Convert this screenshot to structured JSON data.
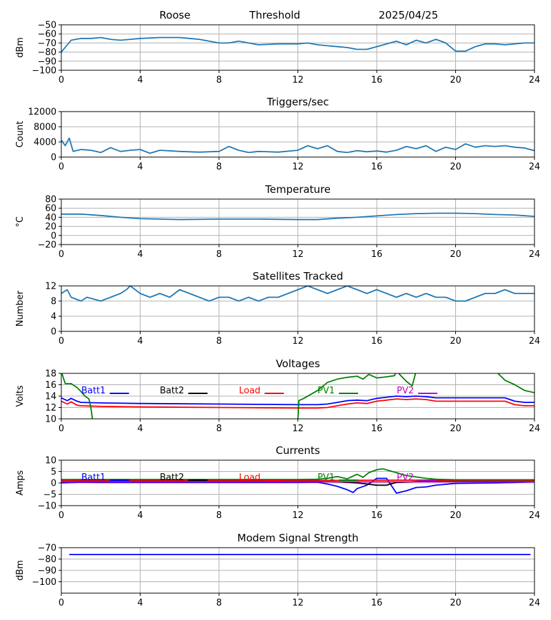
{
  "header": {
    "site": "Roose",
    "mode": "Threshold",
    "date": "2025/04/25"
  },
  "x_axis": {
    "ticks": [
      "0",
      "4",
      "8",
      "12",
      "16",
      "20",
      "24"
    ],
    "range": [
      0,
      24
    ]
  },
  "chart_data": [
    {
      "type": "line",
      "title": "",
      "ylabel": "dBm",
      "ylim": [
        -100,
        -50
      ],
      "yticks": [
        -100,
        -90,
        -80,
        -70,
        -60,
        -50
      ],
      "grid": true,
      "series": [
        {
          "color": "#1f77b4",
          "x": [
            0,
            0.5,
            1,
            1.5,
            2,
            2.5,
            3,
            3.5,
            4,
            5,
            6,
            6.5,
            7,
            7.5,
            8,
            8.5,
            9,
            10,
            11,
            12,
            12.5,
            13,
            13.5,
            14,
            14.5,
            15,
            15.5,
            16,
            16.5,
            17,
            17.5,
            18,
            18.5,
            19,
            19.5,
            20,
            20.5,
            21,
            21.5,
            22,
            22.5,
            23,
            23.5,
            24
          ],
          "y": [
            -80,
            -67,
            -65,
            -65,
            -64,
            -66,
            -67,
            -66,
            -65,
            -64,
            -64,
            -65,
            -66,
            -68,
            -70,
            -70,
            -68,
            -72,
            -71,
            -71,
            -70,
            -72,
            -73,
            -74,
            -75,
            -77,
            -77,
            -74,
            -71,
            -68,
            -72,
            -67,
            -70,
            -66,
            -70,
            -79,
            -79,
            -74,
            -71,
            -71,
            -72,
            -71,
            -70,
            -70
          ]
        }
      ]
    },
    {
      "type": "line",
      "title": "Triggers/sec",
      "ylabel": "Count",
      "ylim": [
        0,
        12000
      ],
      "yticks": [
        0,
        4000,
        8000,
        12000
      ],
      "grid": true,
      "series": [
        {
          "color": "#1f77b4",
          "x": [
            0,
            0.2,
            0.4,
            0.6,
            1,
            1.5,
            2,
            2.5,
            3,
            3.5,
            4,
            4.5,
            5,
            6,
            7,
            8,
            8.5,
            9,
            9.5,
            10,
            11,
            12,
            12.5,
            13,
            13.5,
            14,
            14.5,
            15,
            15.5,
            16,
            16.5,
            17,
            17.5,
            18,
            18.5,
            19,
            19.5,
            20,
            20.5,
            21,
            21.5,
            22,
            22.5,
            23,
            23.5,
            24
          ],
          "y": [
            4500,
            3000,
            5000,
            1500,
            2000,
            1800,
            1200,
            2500,
            1500,
            1800,
            2000,
            1000,
            1800,
            1500,
            1300,
            1500,
            2800,
            1800,
            1200,
            1500,
            1300,
            1800,
            3000,
            2200,
            3000,
            1500,
            1200,
            1700,
            1400,
            1600,
            1300,
            1800,
            2800,
            2200,
            3000,
            1500,
            2600,
            2000,
            3500,
            2600,
            3000,
            2800,
            3000,
            2600,
            2400,
            1700
          ]
        }
      ]
    },
    {
      "type": "line",
      "title": "Temperature",
      "ylabel": "°C",
      "ylim": [
        -20,
        80
      ],
      "yticks": [
        -20,
        0,
        20,
        40,
        60,
        80
      ],
      "grid": true,
      "series": [
        {
          "color": "#1f77b4",
          "x": [
            0,
            1,
            2,
            3,
            4,
            5,
            6,
            8,
            10,
            12,
            13,
            14,
            15,
            16,
            17,
            18,
            19,
            20,
            21,
            22,
            23,
            24
          ],
          "y": [
            47,
            47,
            44,
            40,
            37,
            36,
            35,
            36,
            36,
            35,
            35,
            38,
            40,
            43,
            46,
            48,
            49,
            49,
            48,
            46,
            45,
            42
          ]
        }
      ]
    },
    {
      "type": "line",
      "title": "Satellites Tracked",
      "ylabel": "Number",
      "ylim": [
        0,
        12
      ],
      "yticks": [
        0,
        4,
        8,
        12
      ],
      "grid": true,
      "series": [
        {
          "color": "#1f77b4",
          "x": [
            0,
            0.3,
            0.5,
            1,
            1.3,
            2,
            2.5,
            3,
            3.3,
            3.5,
            4,
            4.5,
            5,
            5.5,
            6,
            6.5,
            7,
            7.5,
            8,
            8.5,
            9,
            9.5,
            10,
            10.5,
            11,
            11.5,
            12,
            12.5,
            13,
            13.5,
            14,
            14.5,
            15,
            15.5,
            16,
            16.5,
            17,
            17.5,
            18,
            18.5,
            19,
            19.5,
            20,
            20.5,
            21,
            21.5,
            22,
            22.5,
            23,
            23.5,
            24
          ],
          "y": [
            10,
            11,
            9,
            8,
            9,
            8,
            9,
            10,
            11,
            12,
            10,
            9,
            10,
            9,
            11,
            10,
            9,
            8,
            9,
            9,
            8,
            9,
            8,
            9,
            9,
            10,
            11,
            12,
            11,
            10,
            11,
            12,
            11,
            10,
            11,
            10,
            9,
            10,
            9,
            10,
            9,
            9,
            8,
            8,
            9,
            10,
            10,
            11,
            10,
            10,
            10
          ]
        }
      ]
    },
    {
      "type": "line",
      "title": "Voltages",
      "ylabel": "Volts",
      "ylim": [
        10,
        18
      ],
      "yticks": [
        10,
        12,
        14,
        16,
        18
      ],
      "grid": true,
      "series": [
        {
          "name": "Batt1",
          "color": "#0000ff",
          "x": [
            0,
            0.3,
            0.5,
            0.8,
            1,
            2,
            4,
            8,
            12,
            13,
            13.5,
            14,
            14.5,
            15,
            15.5,
            16,
            16.5,
            17,
            17.5,
            18,
            18.5,
            19,
            20,
            22.5,
            23,
            23.5,
            24
          ],
          "y": [
            13.7,
            13.2,
            13.6,
            13.1,
            12.9,
            12.8,
            12.7,
            12.6,
            12.5,
            12.5,
            12.6,
            12.9,
            13.2,
            13.3,
            13.2,
            13.6,
            13.8,
            14.0,
            13.9,
            14.0,
            13.9,
            13.7,
            13.7,
            13.7,
            13.1,
            12.9,
            12.9
          ]
        },
        {
          "name": "Batt2",
          "color": "#000000",
          "x": [],
          "y": []
        },
        {
          "name": "Load",
          "color": "#ff0000",
          "x": [
            0,
            0.3,
            0.5,
            0.8,
            1,
            2,
            4,
            8,
            12,
            13,
            13.5,
            14,
            14.5,
            15,
            15.5,
            16,
            16.5,
            17,
            17.5,
            18,
            18.5,
            19,
            20,
            22.5,
            23,
            23.5,
            24
          ],
          "y": [
            13.1,
            12.6,
            13.0,
            12.4,
            12.3,
            12.2,
            12.1,
            12.0,
            11.9,
            11.9,
            12.0,
            12.3,
            12.6,
            12.8,
            12.7,
            13.1,
            13.3,
            13.5,
            13.4,
            13.5,
            13.4,
            13.1,
            13.1,
            13.1,
            12.5,
            12.3,
            12.3
          ]
        },
        {
          "name": "PV1",
          "color": "#008000",
          "x": [
            0,
            0.2,
            0.5,
            0.8,
            1,
            1.2,
            1.4,
            1.5,
            1.6,
            12.0,
            12.05,
            12.3,
            13,
            13.5,
            14,
            14.5,
            15,
            15.3,
            15.6,
            16,
            16.5,
            16.9,
            17,
            17.5,
            17.8,
            18.0,
            22.0,
            22.5,
            23,
            23.5,
            24
          ],
          "y": [
            18.3,
            16.2,
            16.2,
            15.5,
            14.8,
            14.0,
            13.5,
            12.0,
            9.5,
            9.8,
            13.2,
            13.6,
            15.0,
            16.4,
            17.0,
            17.3,
            17.5,
            17.0,
            17.8,
            17.2,
            17.4,
            17.6,
            18.4,
            16.6,
            15.8,
            18.5,
            18.5,
            16.8,
            16.0,
            15.0,
            14.6
          ]
        },
        {
          "name": "PV2",
          "color": "#bf00bf",
          "x": [],
          "y": []
        }
      ]
    },
    {
      "type": "line",
      "title": "Currents",
      "ylabel": "Amps",
      "ylim": [
        -10,
        10
      ],
      "yticks": [
        -10,
        -5,
        0,
        5,
        10
      ],
      "grid": true,
      "series": [
        {
          "name": "Batt1",
          "color": "#0000ff",
          "x": [
            0,
            1,
            2,
            4,
            8,
            12,
            13,
            13.5,
            14,
            14.5,
            14.8,
            15,
            15.5,
            16,
            16.5,
            17,
            17.5,
            18,
            18.5,
            19,
            20,
            21,
            22,
            23,
            24
          ],
          "y": [
            0,
            0.3,
            0.2,
            0.2,
            0.2,
            0.2,
            0.3,
            -0.5,
            -1.5,
            -3.0,
            -4.2,
            -2.5,
            -1.0,
            2.0,
            2.0,
            -4.5,
            -3.5,
            -2.0,
            -1.8,
            -1.0,
            -0.2,
            -0.1,
            0.0,
            0.2,
            0.5
          ]
        },
        {
          "name": "Batt2",
          "color": "#000000",
          "x": [
            0,
            1,
            4,
            8,
            12,
            14,
            15,
            15.5,
            16,
            16.5,
            17,
            18,
            20,
            24
          ],
          "y": [
            0.8,
            0.8,
            0.8,
            0.8,
            0.8,
            0.5,
            0,
            -0.5,
            -1.0,
            -1.0,
            0.2,
            0.6,
            0.8,
            0.9
          ]
        },
        {
          "name": "Load",
          "color": "#ff0000",
          "x": [
            0,
            1,
            4,
            8,
            12,
            14,
            16,
            18,
            20,
            22,
            24
          ],
          "y": [
            1.0,
            1.1,
            1.1,
            1.1,
            1.1,
            1.1,
            1.2,
            1.2,
            1.1,
            1.1,
            1.1
          ]
        },
        {
          "name": "PV1",
          "color": "#008000",
          "x": [
            0,
            1,
            4,
            8,
            12,
            13,
            13.5,
            14,
            14.5,
            15,
            15.3,
            15.6,
            16,
            16.3,
            16.6,
            17,
            17.5,
            18,
            18.5,
            19,
            20,
            22,
            24
          ],
          "y": [
            1.5,
            1.5,
            1.5,
            1.5,
            1.5,
            1.6,
            2.0,
            2.8,
            1.8,
            3.8,
            2.5,
            4.5,
            5.8,
            6.2,
            5.5,
            4.5,
            3.2,
            2.6,
            2.0,
            1.6,
            1.4,
            1.4,
            1.4
          ]
        },
        {
          "name": "PV2",
          "color": "#bf00bf",
          "x": [
            0,
            4,
            8,
            12,
            16,
            20,
            24
          ],
          "y": [
            0.5,
            0.5,
            0.5,
            0.5,
            0.5,
            0.5,
            0.5
          ]
        }
      ]
    },
    {
      "type": "line",
      "title": "Modem Signal Strength",
      "ylabel": "dBm",
      "ylim": [
        -110,
        -70
      ],
      "yticks": [
        -100,
        -90,
        -80,
        -70
      ],
      "grid": true,
      "series": [
        {
          "color": "#0000ff",
          "x": [
            0.4,
            23.8
          ],
          "y": [
            -76,
            -76
          ]
        }
      ]
    }
  ]
}
